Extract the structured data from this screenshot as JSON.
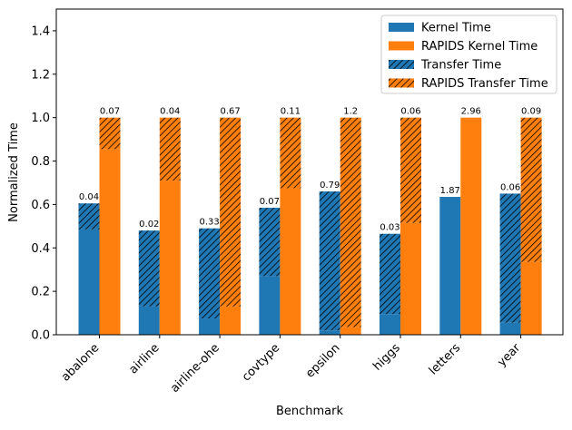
{
  "chart_data": {
    "type": "bar",
    "title": "",
    "xlabel": "Benchmark",
    "ylabel": "Normalized Time",
    "ylim": [
      0,
      1.5
    ],
    "yticks": [
      "0.0",
      "0.2",
      "0.4",
      "0.6",
      "0.8",
      "1.0",
      "1.2",
      "1.4"
    ],
    "categories": [
      "abalone",
      "airline",
      "airline-ohe",
      "covtype",
      "epsilon",
      "higgs",
      "letters",
      "year"
    ],
    "legend_position": "top-right",
    "series": [
      {
        "name": "Kernel Time",
        "group": "baseline",
        "component": "kernel",
        "color": "#1f77b4",
        "hatch": false,
        "values": [
          0.485,
          0.13,
          0.075,
          0.27,
          0.02,
          0.095,
          0.635,
          0.055
        ]
      },
      {
        "name": "RAPIDS Kernel Time",
        "group": "rapids",
        "component": "kernel",
        "color": "#ff7f0e",
        "hatch": false,
        "values": [
          0.855,
          0.71,
          0.13,
          0.675,
          0.035,
          0.515,
          1.0,
          0.335
        ]
      },
      {
        "name": "Transfer Time",
        "group": "baseline",
        "component": "transfer",
        "color": "#1f77b4",
        "hatch": true,
        "values": [
          0.12,
          0.35,
          0.415,
          0.315,
          0.64,
          0.37,
          0.0,
          0.595
        ]
      },
      {
        "name": "RAPIDS Transfer Time",
        "group": "rapids",
        "component": "transfer",
        "color": "#ff7f0e",
        "hatch": true,
        "values": [
          0.145,
          0.29,
          0.87,
          0.325,
          0.965,
          0.485,
          0.0,
          0.665
        ]
      }
    ],
    "annotations": {
      "baseline": [
        "0.04",
        "0.02",
        "0.33",
        "0.07",
        "0.79",
        "0.03",
        "1.87",
        "0.06"
      ],
      "rapids": [
        "0.07",
        "0.04",
        "0.67",
        "0.11",
        "1.2",
        "0.06",
        "2.96",
        "0.09"
      ]
    }
  }
}
